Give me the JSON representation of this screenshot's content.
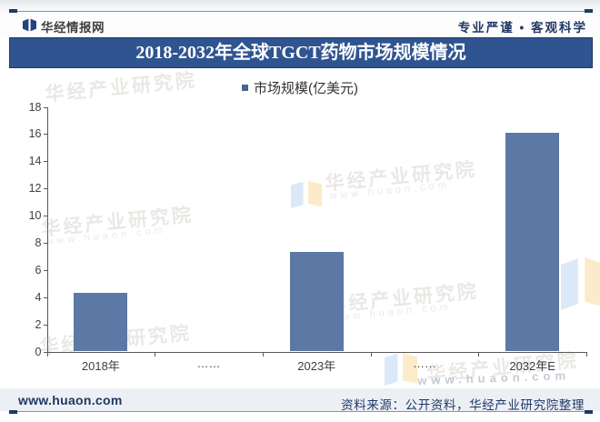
{
  "header": {
    "brand": "华经情报网",
    "slogan": "专业严谨 • 客观科学"
  },
  "chart_data": {
    "type": "bar",
    "title": "2018-2032年全球TGCT药物市场规模情况",
    "legend": "市场规模(亿美元)",
    "legend_position": "top",
    "categories": [
      "2018年",
      "……",
      "2023年",
      "……",
      "2032年E"
    ],
    "series": [
      {
        "name": "市场规模(亿美元)",
        "values": [
          4.3,
          null,
          7.3,
          null,
          16.1
        ]
      }
    ],
    "ylabel": "",
    "xlabel": "",
    "ylim": [
      0,
      18
    ],
    "yticks": [
      0,
      2,
      4,
      6,
      8,
      10,
      12,
      14,
      16,
      18
    ],
    "grid": false,
    "bar_color": "#5B79A4"
  },
  "footer": {
    "site": "www.huaon.com",
    "source": "资料来源：公开资料，华经产业研究院整理"
  },
  "watermark": {
    "brand": "华经产业研究院",
    "site": "www.huaon.com"
  },
  "colors": {
    "titlebar": "#2F5490",
    "navy": "#1F3864",
    "bar": "#5B79A4",
    "axis": "#595959"
  }
}
